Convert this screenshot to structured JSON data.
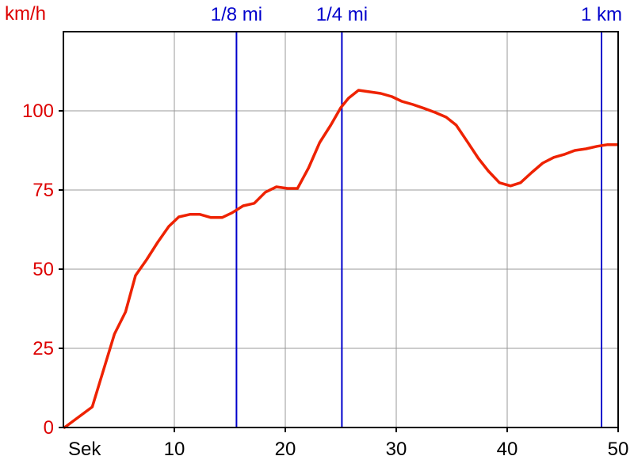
{
  "colors": {
    "series": "#ee2200",
    "y_axis_text": "#dd0000",
    "marker": "#0000cc",
    "axis_text": "#000000",
    "grid": "#999999",
    "frame": "#000000",
    "background": "#ffffff"
  },
  "chart_data": {
    "type": "line",
    "title": "",
    "xlabel": "Sek",
    "ylabel": "km/h",
    "xlim": [
      0,
      50
    ],
    "ylim": [
      0,
      125
    ],
    "grid": true,
    "x_ticks": [
      10,
      20,
      30,
      40,
      50
    ],
    "y_ticks": [
      0,
      25,
      50,
      75,
      100
    ],
    "markers": [
      {
        "label": "1/8 mi",
        "x": 15.6
      },
      {
        "label": "1/4 mi",
        "x": 25.1
      },
      {
        "label": "1 km",
        "x": 48.5
      }
    ],
    "series": [
      {
        "x": [
          0.1,
          2.6,
          3.6,
          4.6,
          5.6,
          6.5,
          7.5,
          8.5,
          9.5,
          10.4,
          11.4,
          12.3,
          13.3,
          14.3,
          15.2,
          16.2,
          17.2,
          18.2,
          19.2,
          20.2,
          21.1,
          22.1,
          23.1,
          24.1,
          25.0,
          25.7,
          26.6,
          27.6,
          28.6,
          29.6,
          30.5,
          31.5,
          32.5,
          33.5,
          34.5,
          35.4,
          36.4,
          37.4,
          38.3,
          39.3,
          40.3,
          41.2,
          42.2,
          43.2,
          44.2,
          45.2,
          46.1,
          47.1,
          48.1,
          49.0,
          49.9
        ],
        "y": [
          0,
          6.5,
          18,
          29.5,
          36.5,
          48,
          53,
          58.5,
          63.5,
          66.5,
          67.3,
          67.3,
          66.3,
          66.3,
          67.8,
          70,
          70.8,
          74.3,
          76,
          75.5,
          75.5,
          82,
          90,
          95.5,
          101,
          104,
          106.5,
          106,
          105.5,
          104.5,
          103,
          102,
          100.8,
          99.5,
          98,
          95.5,
          90.3,
          85,
          81,
          77.3,
          76.3,
          77.3,
          80.5,
          83.5,
          85.3,
          86.3,
          87.5,
          88,
          88.8,
          89.3,
          89.3
        ]
      }
    ]
  }
}
